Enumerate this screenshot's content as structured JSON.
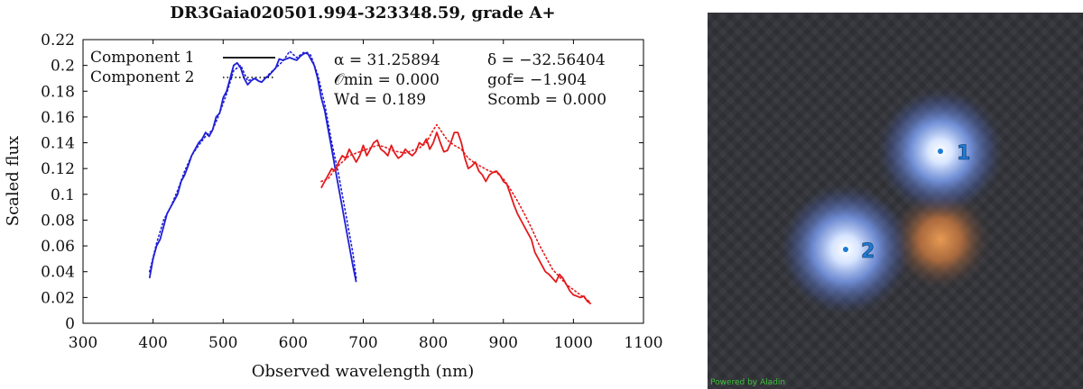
{
  "chart_data": {
    "type": "line",
    "title": "DR3Gaia020501.994-323348.59, grade A+",
    "xlabel": "Observed wavelength (nm)",
    "ylabel": "Scaled flux",
    "xlim": [
      300,
      1100
    ],
    "ylim": [
      0,
      0.22
    ],
    "xticks": [
      300,
      400,
      500,
      600,
      700,
      800,
      900,
      1000,
      1100
    ],
    "yticks": [
      0,
      0.02,
      0.04,
      0.06,
      0.08,
      0.1,
      0.12,
      0.14,
      0.16,
      0.18,
      0.2,
      0.22
    ],
    "grid": false,
    "legend": {
      "placement": "top-left",
      "entries": [
        "Component 1",
        "Component 2"
      ],
      "line_color": "#000000"
    },
    "annotations": [
      "α = 31.25894",
      "δ = −32.56404",
      "𝒪min = 0.000",
      "gof= −1.904",
      "Wd = 0.189",
      "Scomb = 0.000"
    ],
    "series": [
      {
        "color": "#1f1fd6",
        "style": "solid",
        "x": [
          395,
          400,
          405,
          410,
          415,
          420,
          425,
          430,
          435,
          440,
          445,
          450,
          455,
          460,
          465,
          470,
          475,
          480,
          485,
          490,
          495,
          500,
          505,
          510,
          515,
          520,
          525,
          530,
          535,
          540,
          545,
          550,
          555,
          560,
          565,
          570,
          575,
          580,
          585,
          590,
          595,
          600,
          605,
          610,
          615,
          620,
          625,
          630,
          635,
          640,
          645,
          650,
          655,
          660,
          665,
          670,
          675,
          680,
          685,
          690
        ],
        "y": [
          0.035,
          0.05,
          0.06,
          0.065,
          0.075,
          0.085,
          0.09,
          0.095,
          0.1,
          0.11,
          0.115,
          0.122,
          0.13,
          0.135,
          0.14,
          0.143,
          0.148,
          0.145,
          0.15,
          0.16,
          0.163,
          0.175,
          0.18,
          0.19,
          0.2,
          0.202,
          0.198,
          0.19,
          0.185,
          0.188,
          0.19,
          0.188,
          0.187,
          0.19,
          0.192,
          0.195,
          0.198,
          0.205,
          0.204,
          0.205,
          0.206,
          0.205,
          0.204,
          0.207,
          0.209,
          0.21,
          0.205,
          0.2,
          0.19,
          0.175,
          0.165,
          0.15,
          0.135,
          0.12,
          0.105,
          0.09,
          0.075,
          0.06,
          0.045,
          0.032
        ]
      },
      {
        "color": "#1f1fd6",
        "style": "dotted",
        "x": [
          395,
          405,
          415,
          425,
          435,
          445,
          455,
          465,
          475,
          485,
          495,
          505,
          515,
          525,
          535,
          545,
          555,
          565,
          575,
          585,
          595,
          605,
          615,
          625,
          635,
          645,
          655,
          665,
          675,
          685,
          690
        ],
        "y": [
          0.04,
          0.062,
          0.08,
          0.09,
          0.103,
          0.118,
          0.13,
          0.138,
          0.145,
          0.15,
          0.163,
          0.178,
          0.196,
          0.2,
          0.188,
          0.19,
          0.187,
          0.193,
          0.198,
          0.203,
          0.211,
          0.206,
          0.21,
          0.208,
          0.193,
          0.17,
          0.14,
          0.115,
          0.085,
          0.055,
          0.035
        ]
      },
      {
        "color": "#e41a1c",
        "style": "solid",
        "x": [
          640,
          645,
          650,
          655,
          660,
          665,
          670,
          675,
          680,
          685,
          690,
          695,
          700,
          705,
          710,
          715,
          720,
          725,
          730,
          735,
          740,
          745,
          750,
          755,
          760,
          765,
          770,
          775,
          780,
          785,
          790,
          795,
          800,
          805,
          810,
          815,
          820,
          825,
          830,
          835,
          840,
          845,
          850,
          855,
          860,
          865,
          870,
          875,
          880,
          885,
          890,
          895,
          900,
          905,
          910,
          915,
          920,
          925,
          930,
          935,
          940,
          945,
          950,
          955,
          960,
          965,
          970,
          975,
          980,
          985,
          990,
          995,
          1000,
          1005,
          1010,
          1015,
          1020,
          1025
        ],
        "y": [
          0.105,
          0.11,
          0.115,
          0.12,
          0.118,
          0.125,
          0.13,
          0.128,
          0.135,
          0.13,
          0.125,
          0.13,
          0.138,
          0.13,
          0.135,
          0.14,
          0.142,
          0.135,
          0.133,
          0.13,
          0.138,
          0.132,
          0.128,
          0.13,
          0.135,
          0.132,
          0.13,
          0.133,
          0.14,
          0.138,
          0.143,
          0.135,
          0.14,
          0.148,
          0.14,
          0.133,
          0.134,
          0.14,
          0.148,
          0.148,
          0.14,
          0.128,
          0.12,
          0.122,
          0.125,
          0.118,
          0.115,
          0.11,
          0.115,
          0.117,
          0.118,
          0.115,
          0.11,
          0.108,
          0.1,
          0.092,
          0.085,
          0.08,
          0.075,
          0.07,
          0.065,
          0.055,
          0.05,
          0.045,
          0.04,
          0.038,
          0.035,
          0.032,
          0.038,
          0.035,
          0.03,
          0.025,
          0.022,
          0.021,
          0.02,
          0.021,
          0.017,
          0.015
        ]
      },
      {
        "color": "#e41a1c",
        "style": "dotted",
        "x": [
          640,
          650,
          660,
          670,
          680,
          690,
          700,
          710,
          720,
          730,
          740,
          750,
          760,
          770,
          780,
          790,
          800,
          805,
          810,
          820,
          830,
          840,
          850,
          860,
          870,
          880,
          890,
          900,
          910,
          920,
          930,
          940,
          950,
          960,
          970,
          980,
          990,
          1000,
          1010,
          1020,
          1025
        ],
        "y": [
          0.11,
          0.112,
          0.12,
          0.125,
          0.13,
          0.132,
          0.134,
          0.136,
          0.138,
          0.137,
          0.134,
          0.133,
          0.132,
          0.134,
          0.136,
          0.14,
          0.15,
          0.154,
          0.15,
          0.142,
          0.138,
          0.135,
          0.128,
          0.124,
          0.121,
          0.118,
          0.117,
          0.112,
          0.104,
          0.095,
          0.085,
          0.074,
          0.062,
          0.052,
          0.042,
          0.036,
          0.03,
          0.026,
          0.022,
          0.018,
          0.016
        ]
      }
    ]
  },
  "sky_image": {
    "sources": [
      {
        "label": "1",
        "color": "#8fb4ff"
      },
      {
        "label": "2",
        "color": "#8fb4ff"
      },
      {
        "label": "",
        "color": "#d98b45"
      }
    ],
    "marker_color": "#1e7bd6",
    "credit": "Powered by Aladin"
  }
}
